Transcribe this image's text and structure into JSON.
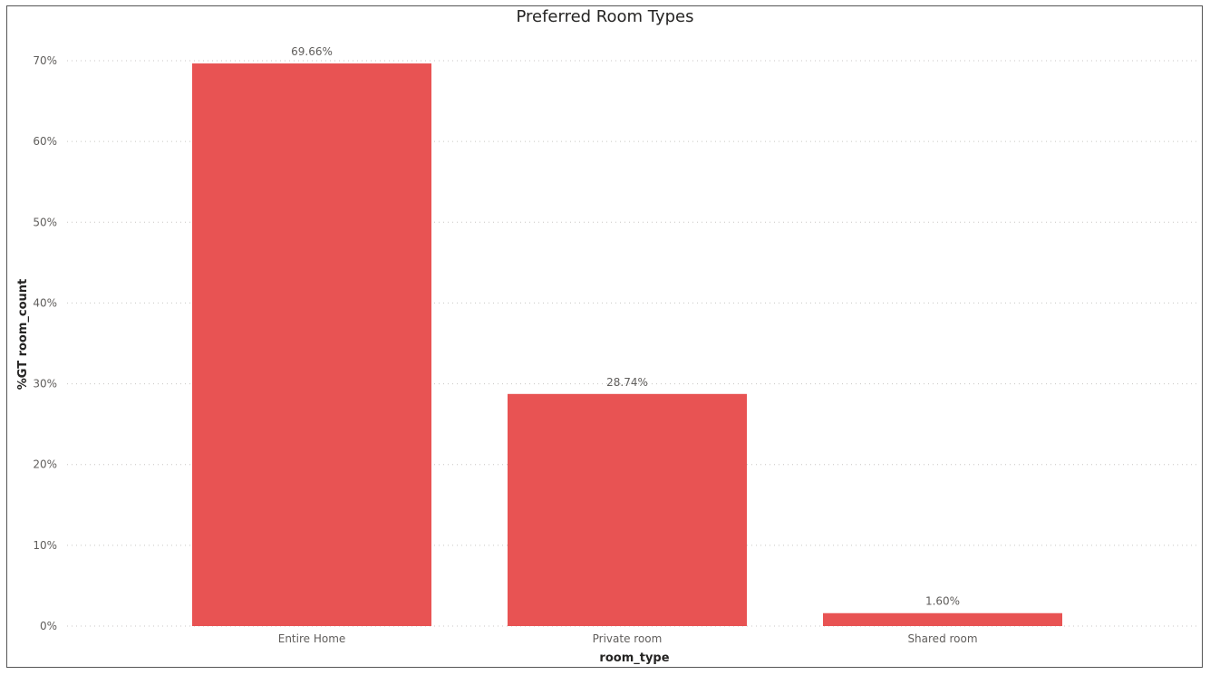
{
  "chart_data": {
    "type": "bar",
    "title": "Preferred Room Types",
    "xlabel": "room_type",
    "ylabel": "%GT room_count",
    "categories": [
      "Entire Home",
      "Private room",
      "Shared room"
    ],
    "values": [
      69.66,
      28.74,
      1.6
    ],
    "data_labels": [
      "69.66%",
      "28.74%",
      "1.60%"
    ],
    "ylim": [
      0,
      70
    ],
    "yticks": [
      0,
      10,
      20,
      30,
      40,
      50,
      60,
      70
    ],
    "ytick_labels": [
      "0%",
      "10%",
      "20%",
      "30%",
      "40%",
      "50%",
      "60%",
      "70%"
    ],
    "grid": true,
    "legend": "none",
    "bar_color": "#e85353",
    "grid_color": "#c8c6c4"
  }
}
